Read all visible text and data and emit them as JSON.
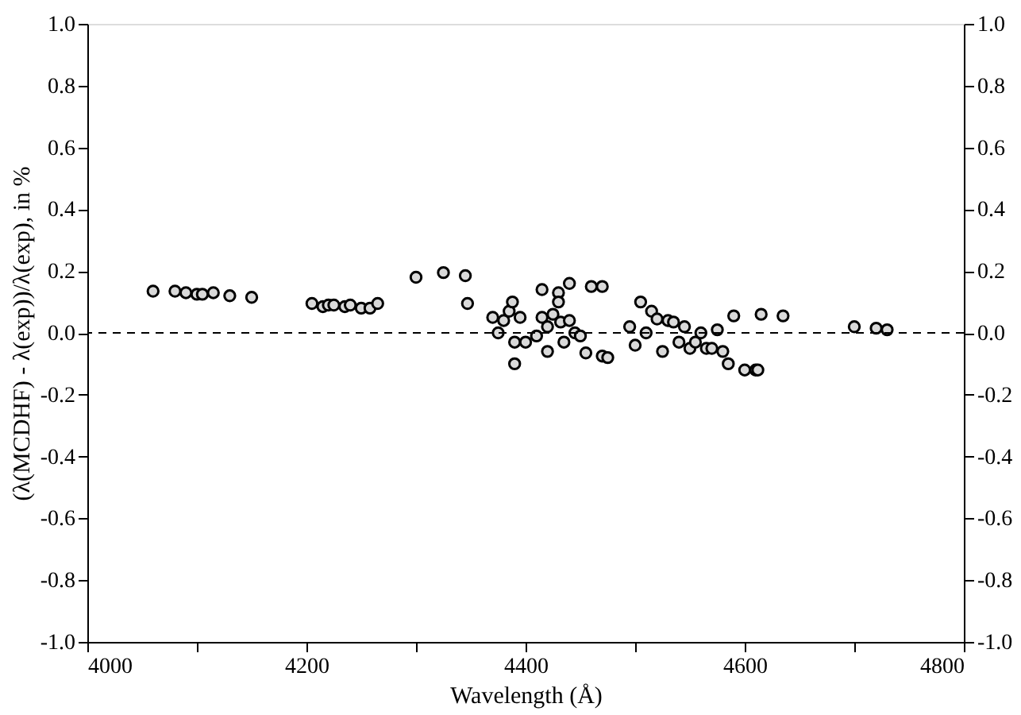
{
  "chart_data": {
    "type": "scatter",
    "xlabel": "Wavelength (Å)",
    "ylabel": "(λ(MCDHF) - λ(exp))/λ(exp), in %",
    "series": [
      {
        "color": "#d9d9d9",
        "x": [
          4060,
          4080,
          4090,
          4100,
          4105,
          4115,
          4130,
          4150,
          4205,
          4215,
          4220,
          4225,
          4235,
          4240,
          4250,
          4258,
          4265,
          4300,
          4325,
          4345,
          4347,
          4370,
          4375,
          4380,
          4385,
          4388,
          4390,
          4390,
          4395,
          4400,
          4410,
          4415,
          4415,
          4420,
          4420,
          4425,
          4430,
          4430,
          4432,
          4435,
          4440,
          4440,
          4445,
          4450,
          4455,
          4460,
          4470,
          4470,
          4475,
          4495,
          4500,
          4505,
          4510,
          4515,
          4520,
          4525,
          4530,
          4535,
          4540,
          4545,
          4550,
          4555,
          4560,
          4565,
          4570,
          4575,
          4580,
          4585,
          4590,
          4600,
          4610,
          4612,
          4615,
          4635,
          4700,
          4720,
          4730
        ],
        "values": [
          0.135,
          0.135,
          0.13,
          0.125,
          0.125,
          0.13,
          0.12,
          0.115,
          0.095,
          0.085,
          0.09,
          0.09,
          0.085,
          0.09,
          0.08,
          0.08,
          0.095,
          0.18,
          0.195,
          0.185,
          0.095,
          0.05,
          0.0,
          0.04,
          0.07,
          0.1,
          -0.03,
          -0.1,
          0.05,
          -0.03,
          -0.01,
          0.05,
          0.14,
          0.02,
          -0.06,
          0.06,
          0.13,
          0.1,
          0.035,
          -0.03,
          0.04,
          0.16,
          0.0,
          -0.01,
          -0.065,
          0.15,
          0.15,
          -0.075,
          -0.08,
          0.02,
          -0.04,
          0.1,
          0.0,
          0.07,
          0.045,
          -0.06,
          0.04,
          0.035,
          -0.03,
          0.02,
          -0.05,
          -0.03,
          0.0,
          -0.05,
          -0.05,
          0.01,
          -0.06,
          -0.1,
          0.055,
          -0.12,
          -0.12,
          -0.12,
          0.06,
          0.055,
          0.02,
          0.015,
          0.01
        ]
      }
    ],
    "marker": "circle",
    "grid": false,
    "legend": false,
    "xlim": [
      4000,
      4800
    ],
    "xticks": [
      4000,
      {
        "value": 4100,
        "label": null
      },
      4200,
      {
        "value": 4300,
        "label": null
      },
      4400,
      {
        "value": 4500,
        "label": null
      },
      4600,
      {
        "value": 4700,
        "label": null
      },
      4800
    ],
    "ylim": [
      -1,
      1
    ],
    "yticks": [
      {
        "value": -1,
        "label": "-1.0"
      },
      {
        "value": -0.8,
        "label": "-0.8"
      },
      {
        "value": -0.6,
        "label": "-0.6"
      },
      {
        "value": -0.4,
        "label": "-0.4"
      },
      {
        "value": -0.2,
        "label": "-0.2"
      },
      {
        "value": 0,
        "label": "0.0"
      },
      {
        "value": 0.2,
        "label": "0.2"
      },
      {
        "value": 0.4,
        "label": "0.4"
      },
      {
        "value": 0.6,
        "label": "0.6"
      },
      {
        "value": 0.8,
        "label": "0.8"
      },
      {
        "value": 1,
        "label": "1.0"
      }
    ],
    "y2lim": [
      -1,
      1
    ],
    "y2ticks": [
      {
        "value": -1,
        "label": "-1.0"
      },
      {
        "value": -0.8,
        "label": "-0.8"
      },
      {
        "value": -0.6,
        "label": "-0.6"
      },
      {
        "value": -0.4,
        "label": "-0.4"
      },
      {
        "value": -0.2,
        "label": "-0.2"
      },
      {
        "value": 0,
        "label": "0.0"
      },
      {
        "value": 0.2,
        "label": "0.2"
      },
      {
        "value": 0.4,
        "label": "0.4"
      },
      {
        "value": 0.6,
        "label": "0.6"
      },
      {
        "value": 0.8,
        "label": "0.8"
      },
      {
        "value": 1,
        "label": "1.0"
      }
    ],
    "ref_lines": [
      {
        "axis": "y",
        "value": 0,
        "line_style": "dashed",
        "color": "#000000"
      }
    ]
  }
}
